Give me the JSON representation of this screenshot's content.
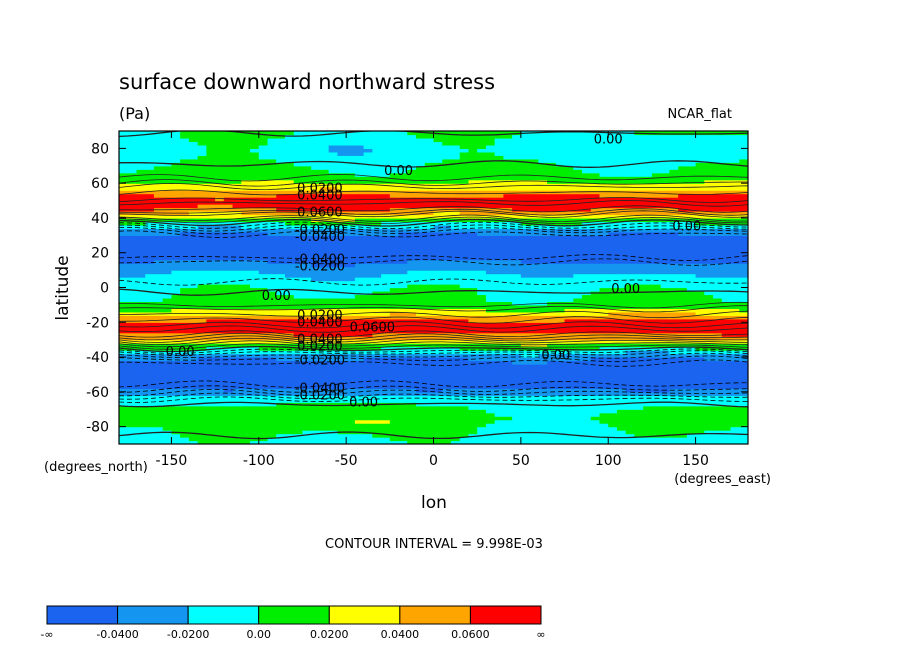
{
  "chart_data": {
    "type": "heatmap",
    "title": "surface downward northward stress",
    "units": "(Pa)",
    "dataset": "NCAR_flat",
    "xlabel": "lon",
    "ylabel": "latitude",
    "x_units_label": "(degrees_east)",
    "y_units_label": "(degrees_north)",
    "xlim": [
      -180,
      180
    ],
    "ylim": [
      -90,
      90
    ],
    "x_ticks": [
      -150,
      -100,
      -50,
      0,
      50,
      100,
      150
    ],
    "x_tick_labels": [
      "-150",
      "-100",
      "-50",
      "0",
      "50",
      "100",
      "150"
    ],
    "y_ticks": [
      80,
      60,
      40,
      20,
      0,
      -20,
      -40,
      -60,
      -80
    ],
    "y_tick_labels": [
      "80",
      "60",
      "40",
      "20",
      "0",
      "-20",
      "-40",
      "-60",
      "-80"
    ],
    "contour_interval_text": "CONTOUR INTERVAL = 9.998E-03",
    "colorbar": {
      "colors": [
        "#1a64f0",
        "#1496f0",
        "#00ffff",
        "#00ee00",
        "#ffff00",
        "#ffa500",
        "#ff0000"
      ],
      "labels": [
        "-∞",
        "-0.0400",
        "-0.0200",
        "0.00",
        "0.0200",
        "0.0400",
        "0.0600",
        "∞"
      ],
      "bounds": [
        -0.06,
        -0.04,
        -0.02,
        0.0,
        0.02,
        0.04,
        0.06,
        0.08
      ]
    },
    "contour_labels": [
      {
        "text": "0.00",
        "lon": 100,
        "lat": 85
      },
      {
        "text": "0.00",
        "lon": -20,
        "lat": 67
      },
      {
        "text": "0.0200",
        "lon": -65,
        "lat": 57
      },
      {
        "text": "0.0400",
        "lon": -65,
        "lat": 53
      },
      {
        "text": "0.0600",
        "lon": -65,
        "lat": 43
      },
      {
        "text": "-0.0200",
        "lon": -65,
        "lat": 33
      },
      {
        "text": "-0.0400",
        "lon": -65,
        "lat": 29
      },
      {
        "text": "0.00",
        "lon": 145,
        "lat": 35
      },
      {
        "text": "-0.0400",
        "lon": -65,
        "lat": 16
      },
      {
        "text": "-0.0200",
        "lon": -65,
        "lat": 12
      },
      {
        "text": "0.00",
        "lon": -90,
        "lat": -5
      },
      {
        "text": "0.00",
        "lon": 110,
        "lat": -1
      },
      {
        "text": "0.0200",
        "lon": -65,
        "lat": -16
      },
      {
        "text": "0.0400",
        "lon": -65,
        "lat": -20
      },
      {
        "text": "0.0600",
        "lon": -35,
        "lat": -23
      },
      {
        "text": "0.0400",
        "lon": -65,
        "lat": -30
      },
      {
        "text": "0.0200",
        "lon": -65,
        "lat": -34
      },
      {
        "text": "0.00",
        "lon": -145,
        "lat": -37
      },
      {
        "text": "0.00",
        "lon": 70,
        "lat": -39
      },
      {
        "text": "-0.0200",
        "lon": -65,
        "lat": -42
      },
      {
        "text": "-0.0400",
        "lon": -65,
        "lat": -58
      },
      {
        "text": "-0.0200",
        "lon": -65,
        "lat": -62
      },
      {
        "text": "0.00",
        "lon": -40,
        "lat": -66
      }
    ],
    "zonal_profile": {
      "lat": [
        -90,
        -80,
        -75,
        -70,
        -66,
        -62,
        -58,
        -54,
        -50,
        -46,
        -42,
        -38,
        -35,
        -32,
        -29,
        -26,
        -23,
        -20,
        -17,
        -14,
        -11,
        -8,
        -4,
        0,
        4,
        8,
        12,
        16,
        20,
        24,
        28,
        32,
        35,
        38,
        41,
        44,
        47,
        50,
        53,
        56,
        59,
        62,
        66,
        70,
        75,
        80,
        85,
        90
      ],
      "value": [
        -0.005,
        0.005,
        0.01,
        0.005,
        -0.002,
        -0.022,
        -0.042,
        -0.055,
        -0.06,
        -0.058,
        -0.045,
        -0.022,
        0.002,
        0.022,
        0.045,
        0.065,
        0.072,
        0.068,
        0.05,
        0.03,
        0.012,
        0.004,
        0.001,
        -0.002,
        -0.012,
        -0.02,
        -0.03,
        -0.045,
        -0.06,
        -0.058,
        -0.05,
        -0.035,
        -0.015,
        0.005,
        0.03,
        0.055,
        0.068,
        0.072,
        0.06,
        0.04,
        0.025,
        0.012,
        0.005,
        0.002,
        -0.008,
        -0.01,
        -0.006,
        0.002
      ]
    }
  }
}
